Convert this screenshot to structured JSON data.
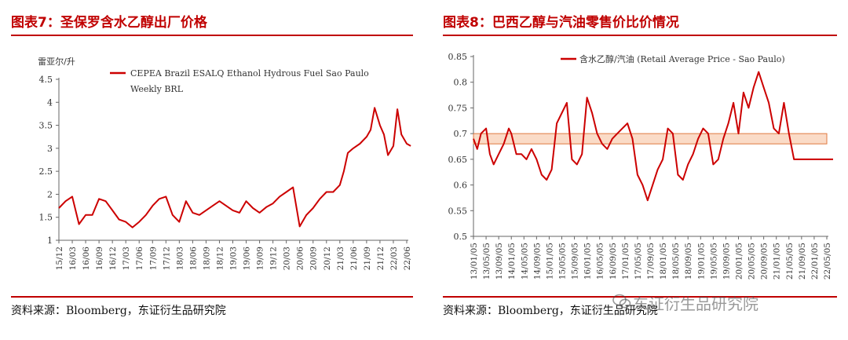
{
  "panels": [
    {
      "title": "图表7：圣保罗含水乙醇出厂价格",
      "source": "资料来源：Bloomberg，东证衍生品研究院"
    },
    {
      "title": "图表8：巴西乙醇与汽油零售价比价情况",
      "source": "资料来源：Bloomberg，东证衍生品研究院"
    }
  ],
  "watermark": "东证衍生品研究院",
  "chart_data": [
    {
      "type": "line",
      "ylabel": "雷亚尔/升",
      "ylim": [
        1,
        4.5
      ],
      "yticks": [
        "1",
        "1.5",
        "2",
        "2.5",
        "3",
        "3.5",
        "4",
        "4.5"
      ],
      "xticks": [
        "15/12",
        "16/03",
        "16/06",
        "16/09",
        "16/12",
        "17/03",
        "17/06",
        "17/09",
        "17/12",
        "18/03",
        "18/06",
        "18/09",
        "18/12",
        "19/03",
        "19/06",
        "19/09",
        "19/12",
        "20/03",
        "20/06",
        "20/09",
        "20/12",
        "21/03",
        "21/06",
        "21/09",
        "21/12",
        "22/03",
        "22/06"
      ],
      "legend_position": "top-left",
      "series": [
        {
          "name": "CEPEA Brazil ESALQ Ethanol Hydrous Fuel Sao Paulo Weekly BRL",
          "color": "#cc0000",
          "x": [
            0,
            0.5,
            1,
            1.5,
            2,
            2.5,
            3,
            3.5,
            4,
            4.5,
            5,
            5.5,
            6,
            6.5,
            7,
            7.5,
            8,
            8.5,
            9,
            9.5,
            10,
            10.5,
            11,
            11.5,
            12,
            12.5,
            13,
            13.5,
            14,
            14.5,
            15,
            15.5,
            16,
            16.5,
            17,
            17.5,
            18,
            18.5,
            19,
            19.5,
            20,
            20.5,
            21,
            21.3,
            21.6,
            22,
            22.5,
            23,
            23.3,
            23.6,
            24,
            24.3,
            24.6,
            25,
            25.3,
            25.6,
            26,
            26.3
          ],
          "y": [
            1.7,
            1.85,
            1.95,
            1.35,
            1.55,
            1.55,
            1.9,
            1.85,
            1.65,
            1.45,
            1.4,
            1.28,
            1.4,
            1.55,
            1.75,
            1.9,
            1.95,
            1.55,
            1.4,
            1.85,
            1.6,
            1.55,
            1.65,
            1.75,
            1.85,
            1.75,
            1.65,
            1.6,
            1.85,
            1.7,
            1.6,
            1.72,
            1.8,
            1.95,
            2.05,
            2.15,
            1.3,
            1.55,
            1.7,
            1.9,
            2.05,
            2.05,
            2.2,
            2.5,
            2.9,
            3.0,
            3.1,
            3.25,
            3.4,
            3.88,
            3.5,
            3.3,
            2.85,
            3.05,
            3.85,
            3.3,
            3.1,
            3.05
          ]
        }
      ]
    },
    {
      "type": "line",
      "ylim": [
        0.5,
        0.85
      ],
      "yticks": [
        "0.5",
        "0.55",
        "0.6",
        "0.65",
        "0.7",
        "0.75",
        "0.8",
        "0.85"
      ],
      "xticks": [
        "13/01/05",
        "13/05/05",
        "13/09/05",
        "14/01/05",
        "14/05/05",
        "14/09/05",
        "15/01/05",
        "15/05/05",
        "15/09/05",
        "16/01/05",
        "16/05/05",
        "16/09/05",
        "17/01/05",
        "17/05/05",
        "17/09/05",
        "18/01/05",
        "18/05/05",
        "18/09/05",
        "19/01/05",
        "19/05/05",
        "19/09/05",
        "20/01/05",
        "20/05/05",
        "20/09/05",
        "21/01/05",
        "21/05/05",
        "21/09/05",
        "22/01/05",
        "22/05/05"
      ],
      "legend_position": "top-left",
      "band": [
        0.68,
        0.7
      ],
      "series": [
        {
          "name": "含水乙醇/汽油 (Retail Average Price - Sao Paulo)",
          "color": "#cc0000",
          "x": [
            0,
            0.3,
            0.6,
            1,
            1.3,
            1.6,
            2,
            2.4,
            2.8,
            3,
            3.4,
            3.8,
            4.2,
            4.6,
            5,
            5.4,
            5.8,
            6.2,
            6.6,
            7,
            7.4,
            7.8,
            8.2,
            8.6,
            9,
            9.4,
            9.8,
            10.2,
            10.6,
            11,
            11.4,
            11.8,
            12.2,
            12.6,
            13,
            13.4,
            13.8,
            14.2,
            14.6,
            15,
            15.4,
            15.8,
            16.2,
            16.6,
            17,
            17.4,
            17.8,
            18.2,
            18.6,
            19,
            19.4,
            19.8,
            20.2,
            20.6,
            21,
            21.4,
            21.8,
            22.2,
            22.6,
            23,
            23.4,
            23.8,
            24.2,
            24.6,
            25,
            25.4,
            25.8,
            26.2,
            26.6,
            27,
            27.4,
            27.8,
            28.2,
            28.5
          ],
          "y": [
            0.69,
            0.67,
            0.7,
            0.71,
            0.66,
            0.64,
            0.66,
            0.68,
            0.71,
            0.7,
            0.66,
            0.66,
            0.65,
            0.67,
            0.65,
            0.62,
            0.61,
            0.63,
            0.72,
            0.74,
            0.76,
            0.65,
            0.64,
            0.66,
            0.77,
            0.74,
            0.7,
            0.68,
            0.67,
            0.69,
            0.7,
            0.71,
            0.72,
            0.69,
            0.62,
            0.6,
            0.57,
            0.6,
            0.63,
            0.65,
            0.71,
            0.7,
            0.62,
            0.61,
            0.64,
            0.66,
            0.69,
            0.71,
            0.7,
            0.64,
            0.65,
            0.69,
            0.72,
            0.76,
            0.7,
            0.78,
            0.75,
            0.79,
            0.82,
            0.79,
            0.76,
            0.71,
            0.7,
            0.76,
            0.7,
            0.65,
            0.65,
            0.65,
            0.65,
            0.65,
            0.65,
            0.65,
            0.65,
            0.65
          ]
        }
      ]
    }
  ]
}
